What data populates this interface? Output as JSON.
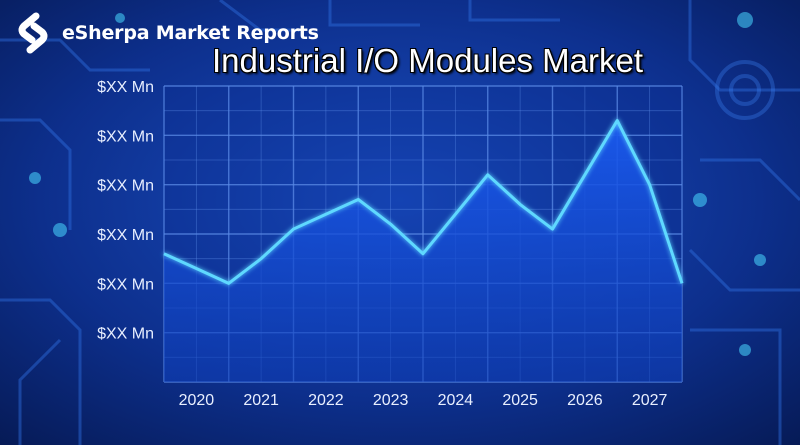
{
  "brand": {
    "name": "eSherpa Market Reports",
    "logo": "esherpa-logo-icon"
  },
  "colors": {
    "line": "#5fd8ff",
    "area": "#1550d8",
    "grid": "#5a8ae6",
    "background": "#0a2a7a"
  },
  "chart_data": {
    "type": "area",
    "title": "Industrial I/O Modules Market",
    "xlabel": "",
    "ylabel": "",
    "categories": [
      "2020",
      "2021",
      "2022",
      "2023",
      "2024",
      "2025",
      "2026",
      "2027"
    ],
    "y_tick_labels": [
      "$XX Mn",
      "$XX Mn",
      "$XX Mn",
      "$XX Mn",
      "$XX Mn",
      "$XX Mn"
    ],
    "ylim": [
      0,
      6
    ],
    "x": [
      2019.5,
      2020,
      2020.5,
      2021,
      2021.5,
      2022,
      2022.5,
      2023,
      2023.5,
      2024,
      2024.5,
      2025,
      2025.5,
      2026,
      2026.5,
      2027,
      2027.5
    ],
    "values": [
      2.6,
      2.3,
      2.0,
      2.5,
      3.1,
      3.4,
      3.7,
      3.2,
      2.6,
      3.4,
      4.2,
      3.6,
      3.1,
      4.2,
      5.3,
      4.0,
      2.0
    ],
    "grid": true,
    "legend": "none"
  }
}
